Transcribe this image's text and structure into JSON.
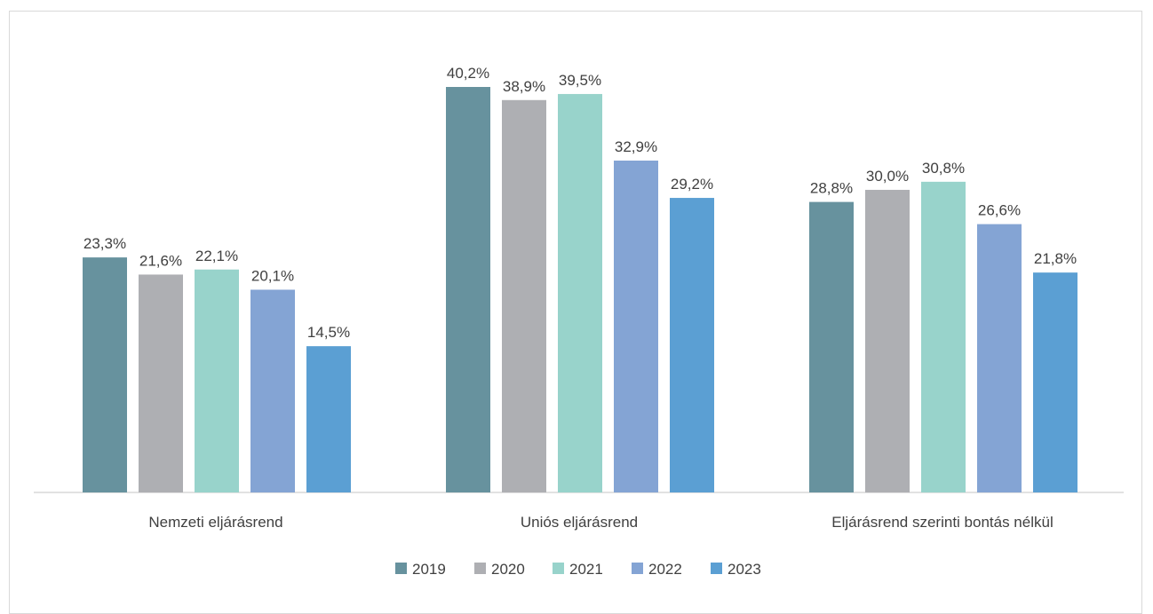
{
  "chart_data": {
    "type": "bar",
    "categories": [
      "Nemzeti eljárásrend",
      "Uniós eljárásrend",
      "Eljárásrend szerinti bontás nélkül"
    ],
    "series": [
      {
        "name": "2019",
        "color": "#67929e",
        "values": [
          23.3,
          40.2,
          28.8
        ],
        "labels": [
          "23,3%",
          "40,2%",
          "28,8%"
        ]
      },
      {
        "name": "2020",
        "color": "#aeafb3",
        "values": [
          21.6,
          38.9,
          30.0
        ],
        "labels": [
          "21,6%",
          "38,9%",
          "30,0%"
        ]
      },
      {
        "name": "2021",
        "color": "#98d3cb",
        "values": [
          22.1,
          39.5,
          30.8
        ],
        "labels": [
          "22,1%",
          "39,5%",
          "30,8%"
        ]
      },
      {
        "name": "2022",
        "color": "#84a4d4",
        "values": [
          20.1,
          32.9,
          26.6
        ],
        "labels": [
          "20,1%",
          "32,9%",
          "26,6%"
        ]
      },
      {
        "name": "2023",
        "color": "#5b9fd3",
        "values": [
          14.5,
          29.2,
          21.8
        ],
        "labels": [
          "14,5%",
          "29,2%",
          "21,8%"
        ]
      }
    ],
    "ylim": [
      0,
      45
    ],
    "grid": false,
    "legend_position": "bottom",
    "title": "",
    "xlabel": "",
    "ylabel": ""
  }
}
